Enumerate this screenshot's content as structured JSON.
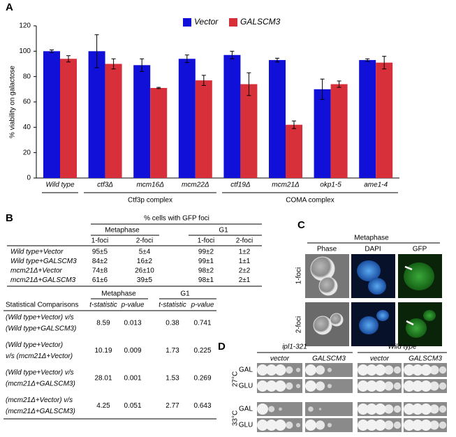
{
  "chart_data": {
    "type": "bar",
    "panel": "A",
    "ylabel": "% viability on galactose",
    "categories": [
      "Wild type",
      "ctf3Δ",
      "mcm16Δ",
      "mcm22Δ",
      "ctf19Δ",
      "mcm21Δ",
      "okp1-5",
      "ame1-4"
    ],
    "series": [
      {
        "name": "Vector",
        "color": "#1010d8",
        "values": [
          100,
          100,
          89,
          94,
          97,
          93,
          70,
          93
        ],
        "errors": [
          1,
          13,
          5,
          3,
          3,
          1.5,
          8,
          1
        ]
      },
      {
        "name": "GALSCM3",
        "color": "#d8303a",
        "values": [
          94,
          90,
          71,
          77,
          74,
          42,
          74,
          91
        ],
        "errors": [
          2.5,
          4,
          0.5,
          4,
          9,
          3,
          2.5,
          5
        ]
      }
    ],
    "groups": [
      "Ctf3p complex",
      "COMA complex"
    ],
    "ylim": [
      0,
      120
    ],
    "yticks": [
      0,
      20,
      40,
      60,
      80,
      100,
      120
    ],
    "legend": "top"
  },
  "panel_b": {
    "label": "B",
    "foci": {
      "title": "% cells with GFP foci",
      "phases": [
        "Metaphase",
        "G1"
      ],
      "columns": [
        "1-foci",
        "2-foci",
        "1-foci",
        "2-foci"
      ],
      "rows": [
        [
          "Wild type+Vector",
          "95±5",
          "5±4",
          "99±2",
          "1±2"
        ],
        [
          "Wild type+GALSCM3",
          "84±2",
          "16±2",
          "99±1",
          "1±1"
        ],
        [
          "mcm21Δ+Vector",
          "74±8",
          "26±10",
          "98±2",
          "2±2"
        ],
        [
          "mcm21Δ+GALSCM3",
          "61±6",
          "39±5",
          "98±1",
          "2±1"
        ]
      ]
    },
    "stats": {
      "phases": [
        "Metaphase",
        "G1"
      ],
      "columns": [
        "Statistical Comparisons",
        "t-statistic",
        "p-value",
        "t-statistic",
        "p-value"
      ],
      "rows": [
        [
          [
            "(Wild type+Vector) v/s",
            "(Wild type+GALSCM3)"
          ],
          8.59,
          0.013,
          0.38,
          0.741
        ],
        [
          [
            "(Wild type+Vector)",
            "v/s (mcm21Δ+Vector)"
          ],
          10.19,
          0.009,
          1.73,
          0.225
        ],
        [
          [
            "(Wild type+Vector) v/s",
            "(mcm21Δ+GALSCM3)"
          ],
          28.01,
          0.001,
          1.53,
          0.269
        ],
        [
          [
            "(mcm21Δ+Vector) v/s",
            "(mcm21Δ+GALSCM3)"
          ],
          4.25,
          0.051,
          2.77,
          0.643
        ]
      ]
    }
  },
  "panel_c": {
    "label": "C",
    "title": "Metaphase",
    "columns": [
      "Phase",
      "DAPI",
      "GFP"
    ],
    "rows": [
      "1-foci",
      "2-foci"
    ]
  },
  "panel_d": {
    "label": "D",
    "strains": [
      "ipl1-321",
      "Wild type"
    ],
    "plasmids": [
      "vector",
      "GALSCM3",
      "vector",
      "GALSCM3"
    ],
    "temps": [
      {
        "temp": "27°C",
        "media": [
          "GAL",
          "GLU"
        ]
      },
      {
        "temp": "33°C",
        "media": [
          "GAL",
          "GLU"
        ]
      }
    ]
  }
}
